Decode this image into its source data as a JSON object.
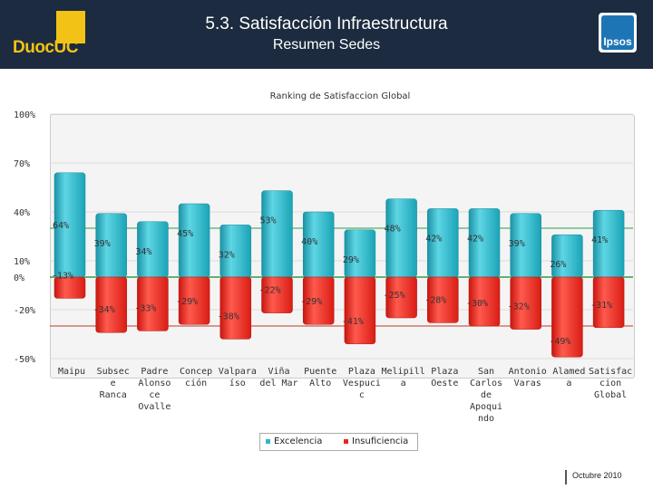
{
  "header": {
    "title": "5.3. Satisfacción Infraestructura",
    "subtitle": "Resumen Sedes",
    "logo_text": "DuocUC",
    "brand_logo": "Ipsos"
  },
  "footer": {
    "date": "Octubre 2010"
  },
  "colors": {
    "header_bg": "#1c2b3f",
    "positive": "#2bb7c9",
    "negative": "#e8271f",
    "logo": "#f2c316"
  },
  "chart_data": {
    "type": "bar",
    "title": "Ranking de Satisfaccion Global",
    "categories": [
      [
        "Maipu"
      ],
      [
        "Subsec",
        "e",
        "Ranca"
      ],
      [
        "Padre",
        "Alonso",
        "ce",
        "Ovalle"
      ],
      [
        "Concep",
        "ción"
      ],
      [
        "Valpara",
        "íso"
      ],
      [
        "Viña",
        "del Mar"
      ],
      [
        "Puente",
        "Alto"
      ],
      [
        "Plaza",
        "Vespuci",
        "c"
      ],
      [
        "Melipill",
        "a"
      ],
      [
        "Plaza",
        "Oeste"
      ],
      [
        "San",
        "Carlos",
        "de",
        "Apoqui",
        "ndo"
      ],
      [
        "Antonio",
        "Varas"
      ],
      [
        "Alamed",
        "a"
      ],
      [
        "Satisfac",
        "cion",
        "Global"
      ]
    ],
    "series": [
      {
        "name": "Excelencia",
        "values": [
          64,
          39,
          34,
          45,
          32,
          53,
          40,
          29,
          48,
          42,
          42,
          39,
          26,
          41
        ],
        "labels": [
          "64%",
          "39%",
          "34%",
          "45%",
          "32%",
          "53%",
          "40%",
          "29%",
          "48%",
          "42%",
          "42%",
          "39%",
          "26%",
          "41%"
        ]
      },
      {
        "name": "Insuficiencia",
        "values": [
          -13,
          -34,
          -33,
          -29,
          -38,
          -22,
          -29,
          -41,
          -25,
          -28,
          -30,
          -32,
          -49,
          -31
        ],
        "labels": [
          "-13%",
          "-34%",
          "-33%",
          "-29%",
          "-38%",
          "-22%",
          "-29%",
          "-41%",
          "-25%",
          "-28%",
          "-30%",
          "-32%",
          "-49%",
          "-31%"
        ]
      }
    ],
    "yticks": [
      100,
      70,
      40,
      10,
      0,
      -20,
      -50
    ],
    "ytick_labels": [
      "100%",
      "70%",
      "40%",
      "10%",
      "0%",
      "-20%",
      "-50%"
    ],
    "ylim": [
      -50,
      100
    ],
    "reference_lines": [
      30,
      -30
    ],
    "legend": [
      "Excelencia",
      "Insuficiencia"
    ]
  }
}
